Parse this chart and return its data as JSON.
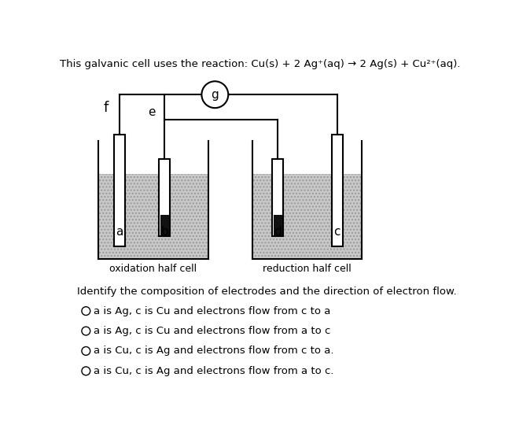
{
  "bg_color": "#ffffff",
  "title": "This galvanic cell uses the reaction: Cu(s) + 2 Ag⁺(aq) → 2 Ag(s) + Cu²⁺(aq).",
  "title_fontsize": 9.5,
  "question_text": "Identify the composition of electrodes and the direction of electron flow.",
  "options": [
    "a is Ag, c is Cu and electrons flow from c to a",
    "a is Ag, c is Cu and electrons flow from a to c",
    "a is Cu, c is Ag and electrons flow from c to a.",
    "a is Cu, c is Ag and electrons flow from a to c."
  ],
  "sol_color": "#c8c8c8",
  "sol_hatch": "....",
  "electrode_face": "#ffffff",
  "electrode_edge": "#000000",
  "deposit_color": "#111111",
  "wire_lw": 1.5,
  "electrode_lw": 1.5
}
